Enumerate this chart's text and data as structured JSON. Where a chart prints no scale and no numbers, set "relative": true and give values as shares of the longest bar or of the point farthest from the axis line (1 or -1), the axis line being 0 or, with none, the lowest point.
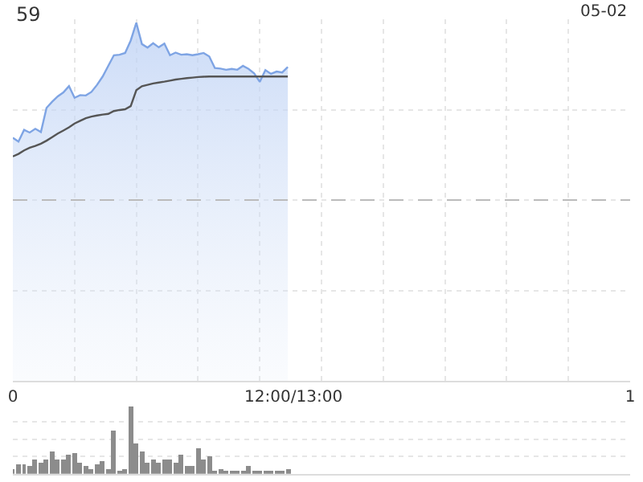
{
  "chart_data": [
    {
      "type": "line",
      "title": "59",
      "relative": true,
      "annotations": [
        "05-02"
      ],
      "grid": true,
      "tick_labels": "x",
      "categories": [
        "0",
        null,
        null,
        null,
        null,
        null,
        null,
        null,
        null,
        null,
        null,
        null,
        null,
        null,
        null,
        null,
        null,
        null,
        null,
        null,
        null,
        null,
        null,
        null,
        null,
        null,
        null,
        null,
        null,
        null,
        null,
        null,
        null,
        null,
        null,
        null,
        null,
        null,
        null,
        null,
        null,
        null,
        null,
        null,
        null,
        null,
        null,
        null,
        null,
        null,
        "12:00/13:00",
        null,
        null,
        null,
        null,
        null,
        null,
        null,
        null,
        null,
        null,
        null,
        null,
        null,
        null,
        null,
        null,
        null,
        null,
        null,
        null,
        null,
        null,
        null,
        null,
        null,
        null,
        null,
        null,
        null,
        null,
        null,
        null,
        null,
        null,
        null,
        null,
        null,
        null,
        null,
        null,
        null,
        null,
        null,
        null,
        null,
        null,
        null,
        null,
        null,
        null,
        null,
        null,
        null,
        null,
        null,
        null,
        null,
        null,
        null,
        "1"
      ],
      "ref_lines": [
        {
          "axis": "y",
          "value": 0,
          "color": "#bbbbbb",
          "line_style": "dashed"
        }
      ],
      "series": [
        {
          "type": "area",
          "color": "#7ea4e4",
          "values": [
            0.351,
            0.33,
            0.396,
            0.381,
            0.402,
            0.384,
            0.52,
            0.555,
            0.585,
            0.607,
            0.643,
            0.577,
            0.592,
            0.59,
            0.61,
            0.65,
            0.697,
            0.757,
            0.817,
            0.82,
            0.83,
            0.9,
            1.0,
            0.88,
            0.86,
            0.885,
            0.862,
            0.883,
            0.817,
            0.832,
            0.82,
            0.823,
            0.817,
            0.823,
            0.83,
            0.81,
            0.745,
            0.742,
            0.735,
            0.74,
            0.735,
            0.757,
            0.74,
            0.715,
            0.667,
            0.733,
            0.712,
            0.725,
            0.72,
            0.751,
            null,
            null,
            null,
            null,
            null,
            null,
            null,
            null,
            null,
            null,
            null,
            null,
            null,
            null,
            null,
            null,
            null,
            null,
            null,
            null,
            null,
            null,
            null,
            null,
            null,
            null,
            null,
            null,
            null,
            null,
            null,
            null,
            null,
            null,
            null,
            null,
            null,
            null,
            null,
            null,
            null,
            null,
            null,
            null,
            null,
            null,
            null,
            null,
            null,
            null,
            null,
            null,
            null,
            null,
            null,
            null,
            null,
            null,
            null,
            null,
            null
          ]
        },
        {
          "type": "line",
          "color": "#555555",
          "values": [
            0.246,
            0.26,
            0.28,
            0.295,
            0.305,
            0.318,
            0.335,
            0.355,
            0.375,
            0.392,
            0.41,
            0.432,
            0.447,
            0.462,
            0.471,
            0.477,
            0.482,
            0.486,
            0.502,
            0.508,
            0.512,
            0.53,
            0.62,
            0.642,
            0.65,
            0.658,
            0.663,
            0.668,
            0.674,
            0.68,
            0.684,
            0.688,
            0.691,
            0.694,
            0.696,
            0.697,
            0.697,
            0.697,
            0.697,
            0.697,
            0.697,
            0.697,
            0.697,
            0.697,
            0.697,
            0.697,
            0.697,
            0.697,
            0.697,
            0.697,
            null,
            null,
            null,
            null,
            null,
            null,
            null,
            null,
            null,
            null,
            null,
            null,
            null,
            null,
            null,
            null,
            null,
            null,
            null,
            null,
            null,
            null,
            null,
            null,
            null,
            null,
            null,
            null,
            null,
            null,
            null,
            null,
            null,
            null,
            null,
            null,
            null,
            null,
            null,
            null,
            null,
            null,
            null,
            null,
            null,
            null,
            null,
            null,
            null,
            null,
            null,
            null,
            null,
            null,
            null,
            null,
            null,
            null,
            null,
            null,
            null
          ]
        }
      ]
    },
    {
      "type": "bar",
      "relative": true,
      "tick_labels": false,
      "grid": "y",
      "color": "#8c8c8c",
      "categories": [
        null,
        null,
        null,
        null,
        null,
        null,
        null,
        null,
        null,
        null,
        null,
        null,
        null,
        null,
        null,
        null,
        null,
        null,
        null,
        null,
        null,
        null,
        null,
        null,
        null,
        null,
        null,
        null,
        null,
        null,
        null,
        null,
        null,
        null,
        null,
        null,
        null,
        null,
        null,
        null,
        null,
        null,
        null,
        null,
        null,
        null,
        null,
        null,
        null,
        null,
        null,
        null,
        null,
        null,
        null,
        null,
        null,
        null,
        null,
        null,
        null,
        null,
        null,
        null,
        null,
        null,
        null,
        null,
        null,
        null,
        null,
        null,
        null,
        null,
        null,
        null,
        null,
        null,
        null,
        null,
        null,
        null,
        null,
        null,
        null,
        null,
        null,
        null,
        null,
        null,
        null,
        null,
        null,
        null,
        null,
        null,
        null,
        null,
        null,
        null,
        null,
        null,
        null,
        null,
        null,
        null,
        null,
        null,
        null,
        null,
        null
      ],
      "values": [
        0.06,
        0.14,
        0.14,
        0.11,
        0.2,
        0.16,
        0.2,
        0.33,
        0.2,
        0.2,
        0.28,
        0.3,
        0.16,
        0.12,
        0.06,
        0.14,
        0.19,
        0.06,
        0.65,
        0.04,
        0.06,
        1.0,
        0.46,
        0.33,
        0.16,
        0.2,
        0.16,
        0.22,
        0.2,
        0.16,
        0.28,
        0.12,
        0.12,
        0.38,
        0.2,
        0.27,
        0.04,
        0.06,
        0.04,
        0.03,
        0.04,
        0.03,
        0.12,
        0.04,
        0.03,
        0.04,
        0.04,
        0.04,
        0.03,
        0.06,
        null,
        null,
        null,
        null,
        null,
        null,
        null,
        null,
        null,
        null,
        null,
        null,
        null,
        null,
        null,
        null,
        null,
        null,
        null,
        null,
        null,
        null,
        null,
        null,
        null,
        null,
        null,
        null,
        null,
        null,
        null,
        null,
        null,
        null,
        null,
        null,
        null,
        null,
        null,
        null,
        null,
        null,
        null,
        null,
        null,
        null,
        null,
        null,
        null,
        null,
        null,
        null,
        null,
        null,
        null,
        null,
        null,
        null,
        null,
        null,
        null
      ]
    }
  ]
}
